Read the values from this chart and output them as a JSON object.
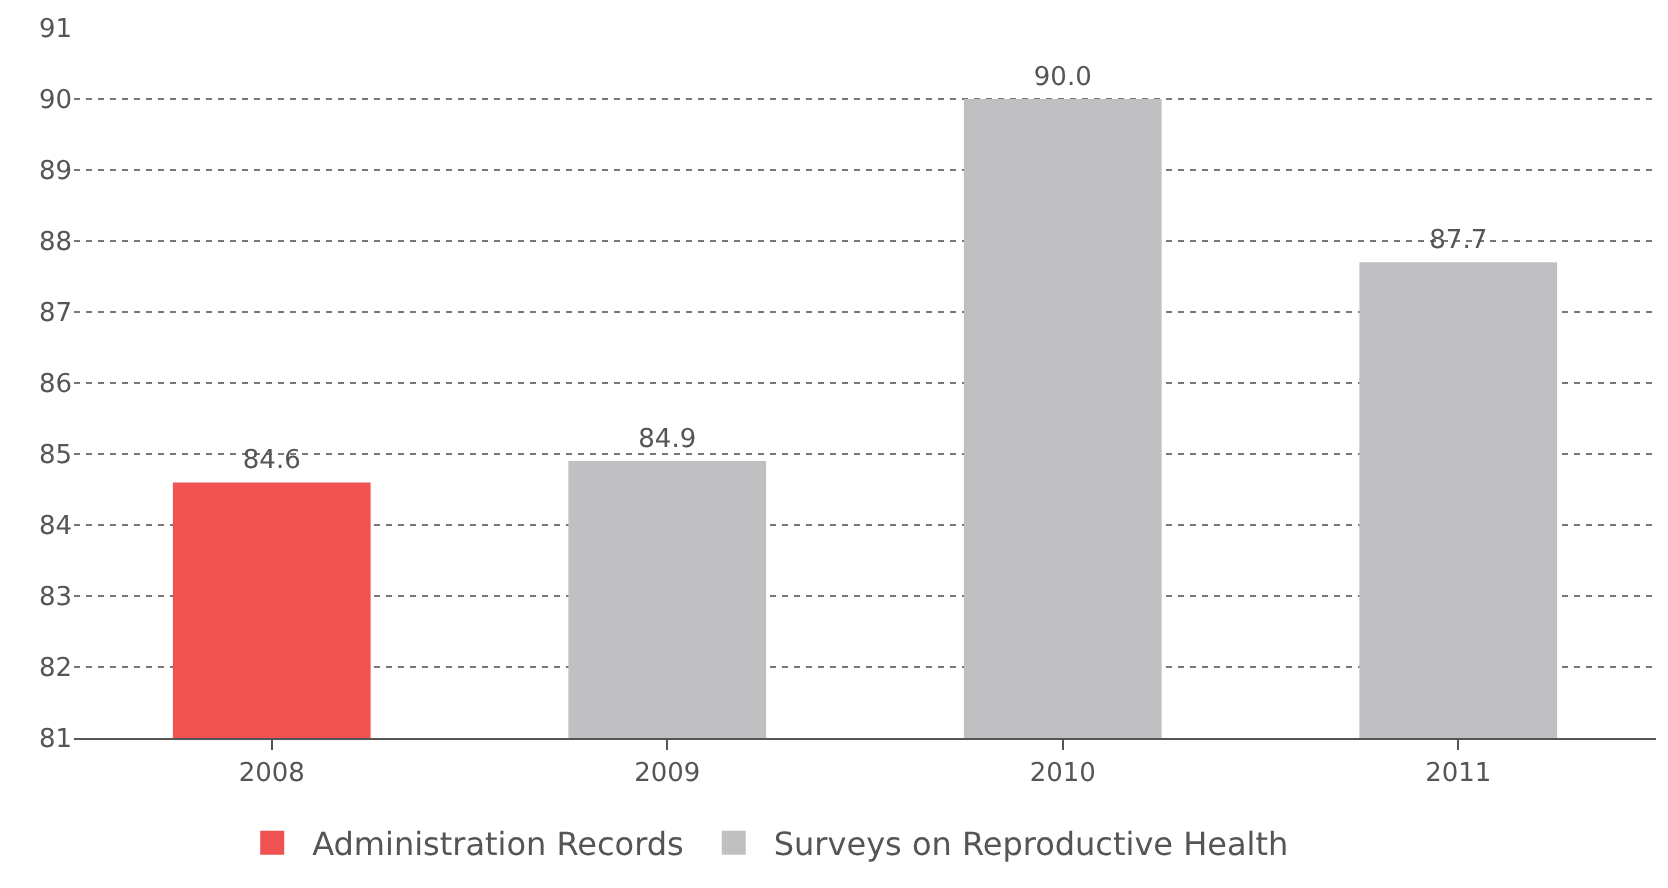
{
  "chart_data": {
    "type": "bar",
    "categories": [
      "2008",
      "2009",
      "2010",
      "2011"
    ],
    "series": [
      {
        "name": "Administration Records",
        "color": "#f05252",
        "values": [
          84.6,
          null,
          null,
          null
        ],
        "value_labels": [
          "84.6",
          null,
          null,
          null
        ]
      },
      {
        "name": "Surveys on Reproductive Health",
        "color": "#c0bfc2",
        "values": [
          null,
          84.9,
          90.0,
          87.7
        ],
        "value_labels": [
          null,
          "84.9",
          "90.0",
          "87.7"
        ]
      }
    ],
    "ylim": [
      81,
      91
    ],
    "yticks": [
      81,
      82,
      83,
      84,
      85,
      86,
      87,
      88,
      89,
      90,
      91
    ],
    "grid": "y",
    "legend": "bottom"
  }
}
